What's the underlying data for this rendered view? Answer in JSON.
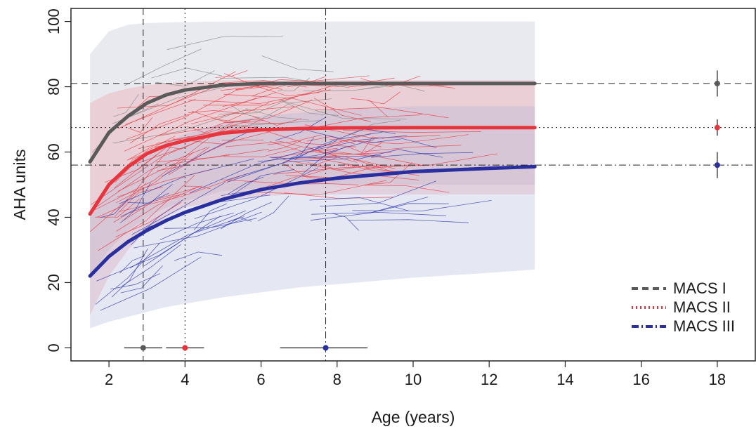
{
  "chart_data": {
    "type": "line",
    "title": "",
    "xlabel": "Age (years)",
    "ylabel": "AHA units",
    "xlim": [
      1.0,
      19.0
    ],
    "ylim": [
      -4,
      104
    ],
    "xticks": [
      2,
      4,
      6,
      8,
      10,
      12,
      14,
      16,
      18
    ],
    "yticks": [
      0,
      20,
      40,
      60,
      80,
      100
    ],
    "grid": false,
    "legend_position": "bottom-right",
    "colors": {
      "MACS I": "#5a5a5a",
      "MACS II": "#e8343c",
      "MACS III": "#2a2fa0"
    },
    "series": [
      {
        "name": "MACS I",
        "linestyle": "dashed",
        "color": "#5a5a5a",
        "x": [
          1.5,
          2,
          2.5,
          3,
          3.5,
          4,
          5,
          6,
          7,
          8,
          10,
          12,
          13.2
        ],
        "y": [
          57,
          66,
          71,
          75,
          77.5,
          79,
          80.5,
          81,
          81,
          81,
          81,
          81,
          81
        ],
        "limit": 81,
        "age_at_90pct": 2.9,
        "age_at_90pct_ci": [
          2.4,
          3.4
        ],
        "limit_ci_at_18": [
          77,
          85
        ],
        "band_upper": [
          90,
          97,
          99,
          99.5,
          99.7,
          99.8,
          100,
          100,
          100,
          100,
          100,
          100,
          100
        ],
        "band_lower": [
          22,
          30,
          36,
          40,
          43,
          45,
          48,
          49,
          50,
          50,
          50,
          50,
          50
        ]
      },
      {
        "name": "MACS II",
        "linestyle": "dotted",
        "color": "#e8343c",
        "x": [
          1.5,
          2,
          2.5,
          3,
          3.5,
          4,
          5,
          6,
          7,
          8,
          10,
          12,
          13.2
        ],
        "y": [
          41,
          50,
          55.5,
          59.5,
          62,
          63.5,
          65.8,
          66.8,
          67.2,
          67.4,
          67.5,
          67.5,
          67.5
        ],
        "limit": 67.5,
        "age_at_90pct": 4.0,
        "age_at_90pct_ci": [
          3.5,
          4.5
        ],
        "limit_ci_at_18": [
          65,
          70
        ],
        "band_upper": [
          75,
          78,
          79.5,
          80.5,
          81,
          81.5,
          82,
          82,
          82,
          82,
          82,
          82,
          82
        ],
        "band_lower": [
          10,
          22,
          30,
          36,
          40,
          43,
          45.5,
          46.5,
          47,
          47,
          47,
          47,
          47
        ]
      },
      {
        "name": "MACS III",
        "linestyle": "dotdash",
        "color": "#2a2fa0",
        "x": [
          1.5,
          2,
          2.5,
          3,
          3.5,
          4,
          5,
          6,
          7,
          8,
          10,
          12,
          13.2
        ],
        "y": [
          22,
          28,
          32.5,
          36,
          39,
          41.5,
          45.5,
          48.5,
          50.5,
          52,
          54,
          55,
          55.5
        ],
        "limit": 56,
        "age_at_90pct": 7.7,
        "age_at_90pct_ci": [
          6.5,
          8.8
        ],
        "limit_ci_at_18": [
          52,
          60
        ],
        "band_upper": [
          42,
          50,
          56,
          60,
          63,
          65.5,
          69,
          71,
          72,
          73,
          74,
          74,
          74
        ],
        "band_lower": [
          6,
          8,
          9.5,
          11,
          12.5,
          13.5,
          15.5,
          17,
          18.5,
          19.5,
          21.5,
          23,
          24
        ]
      }
    ]
  }
}
